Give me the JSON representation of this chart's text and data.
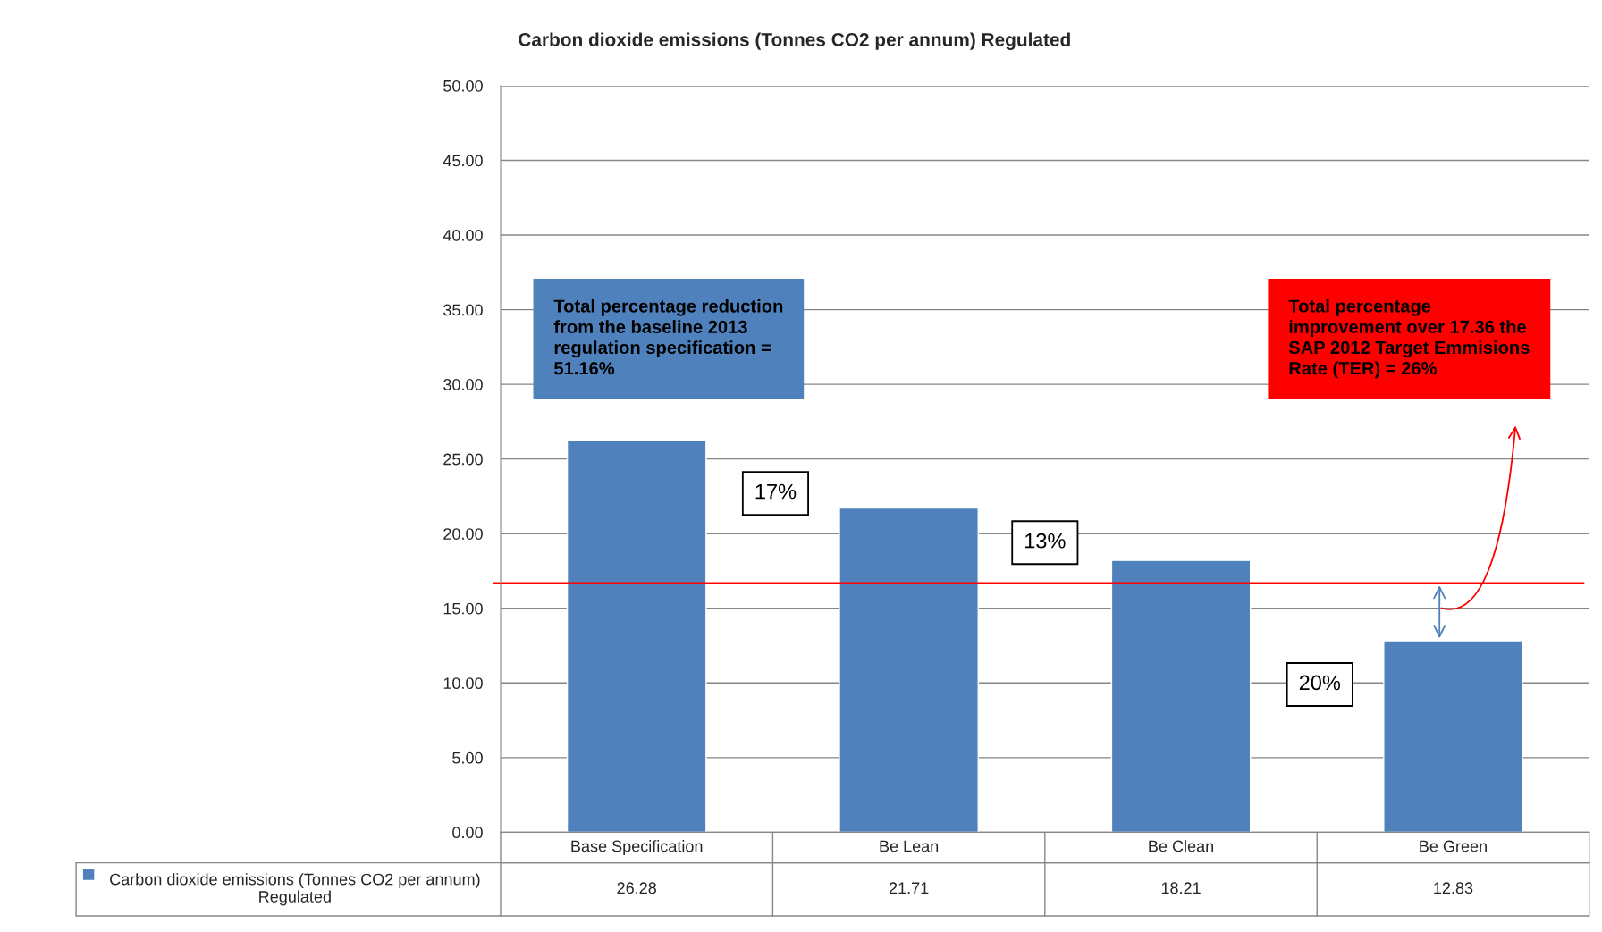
{
  "chart_data": {
    "type": "bar",
    "title": "Carbon dioxide emissions (Tonnes CO2 per annum) Regulated",
    "categories": [
      "Base Specification",
      "Be Lean",
      "Be Clean",
      "Be Green"
    ],
    "series": [
      {
        "name": "Carbon dioxide emissions (Tonnes CO2 per annum) Regulated",
        "color": "#4f81bd",
        "values": [
          26.28,
          21.71,
          18.21,
          12.83
        ]
      }
    ],
    "data_labels": true,
    "ylim": [
      0,
      50
    ],
    "yticks": [
      {
        "value": 0,
        "label": "0.00"
      },
      {
        "value": 5,
        "label": "5.00"
      },
      {
        "value": 10,
        "label": "10.00"
      },
      {
        "value": 15,
        "label": "15.00"
      },
      {
        "value": 20,
        "label": "20.00"
      },
      {
        "value": 25,
        "label": "25.00"
      },
      {
        "value": 30,
        "label": "30.00"
      },
      {
        "value": 35,
        "label": "35.00"
      },
      {
        "value": 40,
        "label": "40.00"
      },
      {
        "value": 45,
        "label": "45.00"
      },
      {
        "value": 50,
        "label": "50.00"
      }
    ],
    "grid": "y",
    "ref_lines": [
      {
        "axis": "y",
        "value": 16.7,
        "color": "#ff0000"
      }
    ],
    "annotations": [
      "Total percentage reduction\nfrom the baseline 2013\nregulation specification =\n51.16%",
      "17%",
      "13%",
      "20%",
      "Total percentage\nimprovement over 17.36 the\nSAP 2012 Target Emmisions\nRate (TER) = 26%"
    ]
  }
}
